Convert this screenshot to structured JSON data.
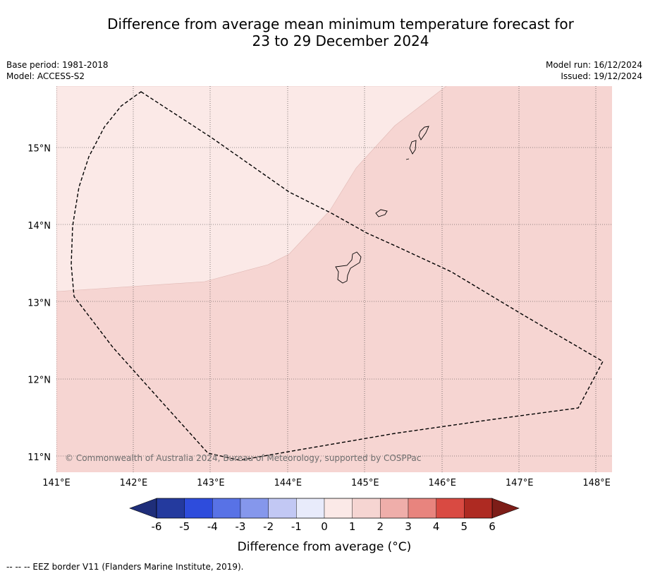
{
  "title": {
    "line1": "Difference from average mean minimum temperature forecast for",
    "line2": "23 to 29 December 2024"
  },
  "meta": {
    "base_period": "Base period: 1981-2018",
    "model": "Model: ACCESS-S2",
    "model_run": "Model run: 16/12/2024",
    "issued": "Issued: 19/12/2024"
  },
  "map": {
    "lon_range": [
      141,
      148.2
    ],
    "lat_range": [
      10.8,
      15.8
    ],
    "lon_ticks": [
      "141°E",
      "142°E",
      "143°E",
      "144°E",
      "145°E",
      "146°E",
      "147°E",
      "148°E"
    ],
    "lat_ticks": [
      "11°N",
      "12°N",
      "13°N",
      "14°N",
      "15°N"
    ],
    "lon_tick_values": [
      141,
      142,
      143,
      144,
      145,
      146,
      147,
      148
    ],
    "lat_tick_values": [
      11,
      12,
      13,
      14,
      15
    ],
    "grid": true,
    "copyright": "© Commonwealth of Australia 2024, Bureau of Meteorology, supported by COSPPac",
    "colors": {
      "band_0_1": "#fbe9e7",
      "band_1_2": "#f6d5d2",
      "land_outline": "#000000",
      "eez_border": "#000000"
    }
  },
  "colorbar": {
    "labels": [
      "-6",
      "-5",
      "-4",
      "-3",
      "-2",
      "-1",
      "0",
      "1",
      "2",
      "3",
      "4",
      "5",
      "6"
    ],
    "colors": [
      "#243a9e",
      "#2e4cdc",
      "#5872e6",
      "#8597ec",
      "#c2c8f4",
      "#e8ebfb",
      "#fbe9e7",
      "#f6d5d2",
      "#efaeaa",
      "#e8847e",
      "#d94a42",
      "#ae2a22"
    ],
    "under_color": "#1f2e7a",
    "over_color": "#7d1d18",
    "label": "Difference from average (°C)"
  },
  "footnote": "--  --  -- EEZ border V11 (Flanders Marine Institute, 2019)."
}
